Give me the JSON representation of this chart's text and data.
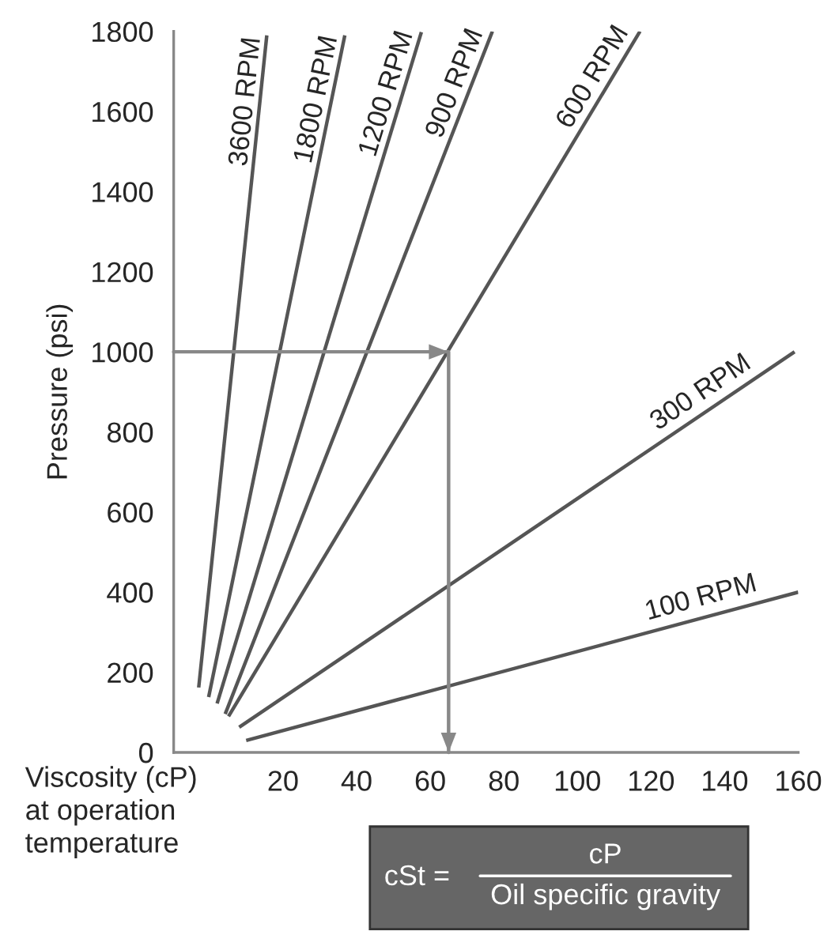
{
  "chart_data": {
    "type": "line",
    "ylabel": "Pressure (psi)",
    "xlabel": "Viscosity (cP)\nat operation\ntemperature",
    "xlim": [
      -9.7,
      160
    ],
    "ylim": [
      0,
      1800
    ],
    "xticks": [
      20,
      40,
      60,
      80,
      100,
      120,
      140,
      160
    ],
    "yticks": [
      0,
      200,
      400,
      600,
      800,
      1000,
      1200,
      1400,
      1600,
      1800
    ],
    "grid": false,
    "legend": false,
    "marker": "none",
    "line_style": "solid",
    "series": [
      {
        "name": "3600 RPM",
        "color": "#555555",
        "x": [
          -2.9,
          15.6
        ],
        "values": [
          162,
          1790
        ]
      },
      {
        "name": "1800 RPM",
        "color": "#555555",
        "x": [
          -0.2,
          36.8
        ],
        "values": [
          138,
          1790
        ]
      },
      {
        "name": "1200 RPM",
        "color": "#555555",
        "x": [
          2.1,
          57.6
        ],
        "values": [
          122,
          1798
        ]
      },
      {
        "name": "900 RPM",
        "color": "#555555",
        "x": [
          4.3,
          76.9
        ],
        "values": [
          96,
          1800
        ]
      },
      {
        "name": "600 RPM",
        "color": "#555555",
        "x": [
          5.2,
          117
        ],
        "values": [
          90,
          1800
        ]
      },
      {
        "name": "300 RPM",
        "color": "#555555",
        "x": [
          8.1,
          159
        ],
        "values": [
          63,
          1000
        ]
      },
      {
        "name": "100 RPM",
        "color": "#555555",
        "x": [
          10,
          160
        ],
        "values": [
          30,
          400
        ]
      },
      {
        "color": "#888888",
        "x": [
          -9.7,
          65,
          65
        ],
        "values": [
          1000,
          1000,
          0
        ]
      }
    ],
    "annotations": [
      "cSt =",
      "cP",
      "Oil specific gravity"
    ]
  }
}
